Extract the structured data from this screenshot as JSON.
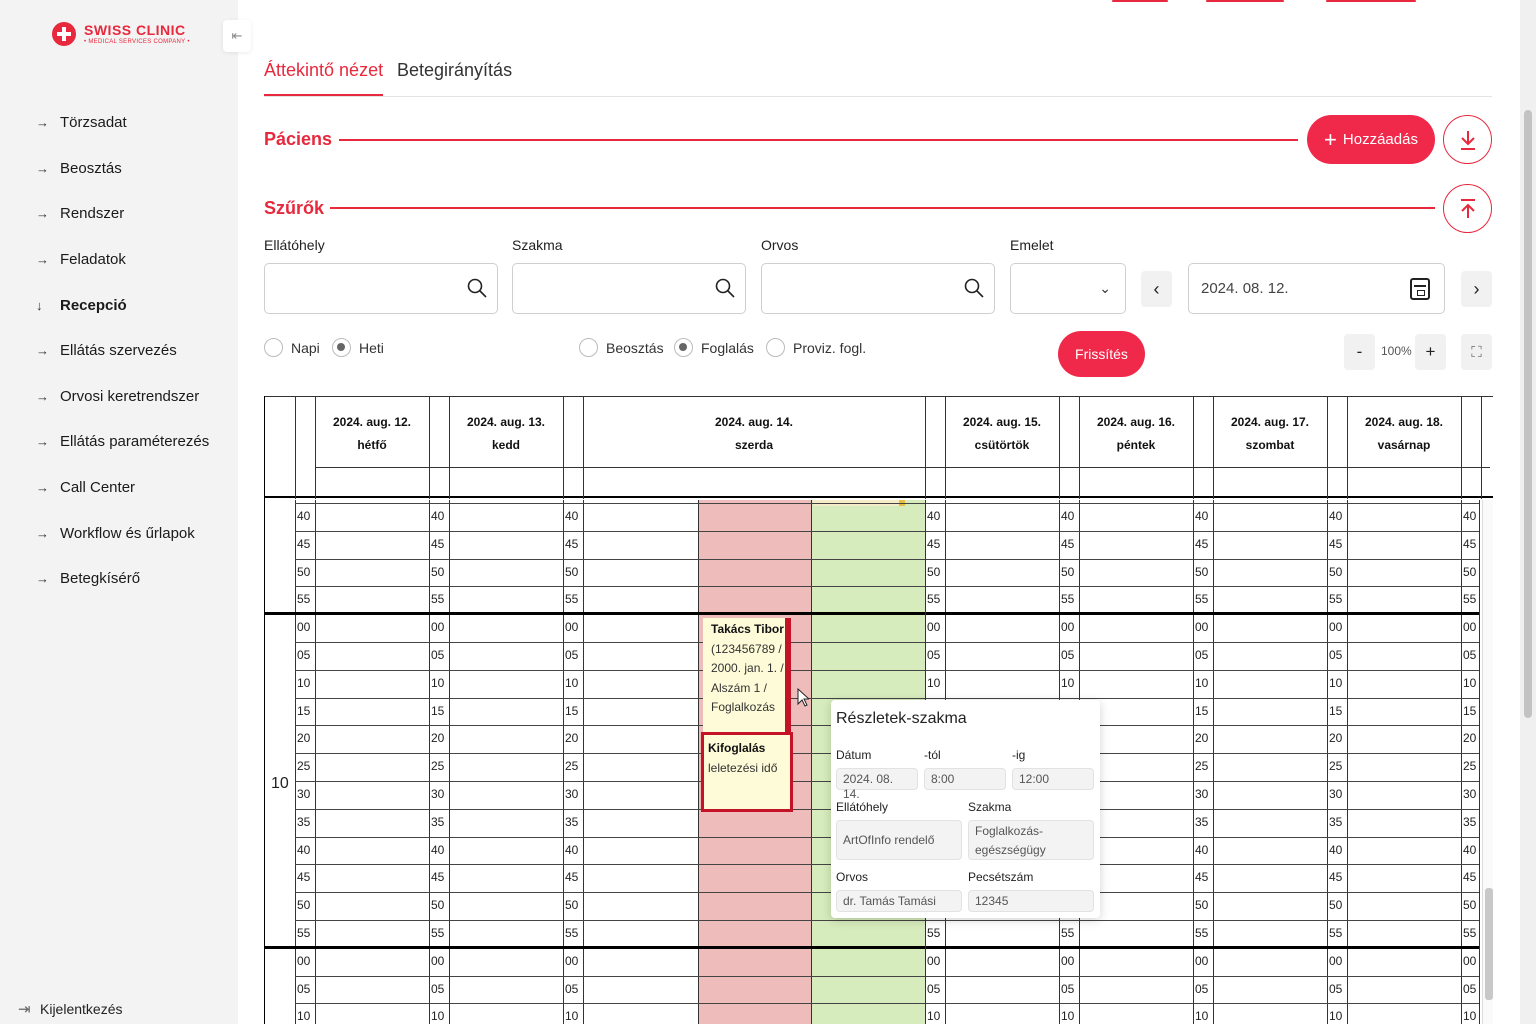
{
  "sidebar": {
    "logo": {
      "name": "SWISS CLINIC",
      "subtitle": "• MEDICAL SERVICES COMPANY •"
    },
    "items": [
      {
        "label": "Törzsadat",
        "arrow": "→"
      },
      {
        "label": "Beosztás",
        "arrow": "→"
      },
      {
        "label": "Rendszer",
        "arrow": "→"
      },
      {
        "label": "Feladatok",
        "arrow": "→"
      },
      {
        "label": "Recepció",
        "arrow": "↓",
        "active": true
      },
      {
        "label": "Ellátás szervezés",
        "arrow": "→"
      },
      {
        "label": "Orvosi keretrendszer",
        "arrow": "→"
      },
      {
        "label": "Ellátás paraméterezés",
        "arrow": "→"
      },
      {
        "label": "Call Center",
        "arrow": "→"
      },
      {
        "label": "Workflow és űrlapok",
        "arrow": "→"
      },
      {
        "label": "Betegkísérő",
        "arrow": "→"
      }
    ],
    "logout": "Kijelentkezés"
  },
  "tabs": [
    {
      "label": "Áttekintő nézet",
      "active": true
    },
    {
      "label": "Betegirányítás",
      "active": false
    }
  ],
  "patient": {
    "title": "Páciens",
    "add_label": "Hozzáadás"
  },
  "filters": {
    "title": "Szűrők",
    "fields": [
      {
        "label": "Ellátóhely",
        "value": ""
      },
      {
        "label": "Szakma",
        "value": ""
      },
      {
        "label": "Orvos",
        "value": ""
      },
      {
        "label": "Emelet",
        "value": ""
      }
    ],
    "date": "2024. 08. 12.",
    "view_options": [
      {
        "label": "Napi",
        "selected": false
      },
      {
        "label": "Heti",
        "selected": true
      }
    ],
    "type_options": [
      {
        "label": "Beosztás",
        "selected": false
      },
      {
        "label": "Foglalás",
        "selected": true
      },
      {
        "label": "Proviz. fogl.",
        "selected": false
      }
    ],
    "refresh_label": "Frissítés",
    "zoom": "100%",
    "zoom_minus": "-",
    "zoom_plus": "+"
  },
  "calendar": {
    "days": [
      {
        "date": "2024. aug. 12.",
        "weekday": "hétfő"
      },
      {
        "date": "2024. aug. 13.",
        "weekday": "kedd"
      },
      {
        "date": "2024. aug. 14.",
        "weekday": "szerda"
      },
      {
        "date": "2024. aug. 15.",
        "weekday": "csütörtök"
      },
      {
        "date": "2024. aug. 16.",
        "weekday": "péntek"
      },
      {
        "date": "2024. aug. 17.",
        "weekday": "szombat"
      },
      {
        "date": "2024. aug. 18.",
        "weekday": "vasárnap"
      }
    ],
    "hour_label": "10",
    "minute_labels": [
      "40",
      "45",
      "50",
      "55",
      "00",
      "05",
      "10",
      "15",
      "20",
      "25",
      "30",
      "35",
      "40",
      "45",
      "50",
      "55",
      "00",
      "05",
      "10"
    ],
    "booking": {
      "name": "Takács Tibor",
      "lines": [
        "(123456789 /",
        "2000. jan. 1. /",
        "Alszám 1 /",
        "Foglalkozás"
      ]
    },
    "blocked": {
      "title": "Kifoglalás",
      "text": "leletezési idő"
    }
  },
  "tooltip": {
    "title": "Részletek-szakma",
    "date_label": "Dátum",
    "date": "2024. 08. 14.",
    "from_label": "-tól",
    "from": "8:00",
    "to_label": "-ig",
    "to": "12:00",
    "location_label": "Ellátóhely",
    "location": "ArtOfInfo rendelő",
    "specialty_label": "Szakma",
    "specialty": "Foglalkozás-egészségügy",
    "doctor_label": "Orvos",
    "doctor": "dr. Tamás Tamási",
    "stamp_label": "Pecsétszám",
    "stamp": "12345"
  },
  "colors": {
    "accent": "#e8283d",
    "blocked_red": "#efbcbc",
    "available_green": "#d6ecbc",
    "booking_bg": "#fefbd8",
    "booking_border": "#c41227"
  }
}
